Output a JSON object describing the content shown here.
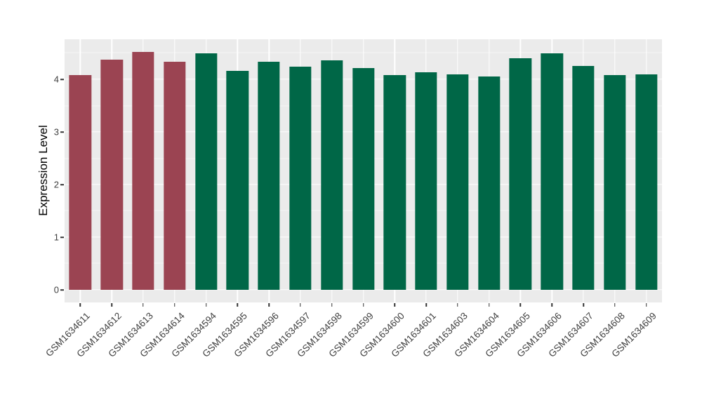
{
  "figure": {
    "background": "#ffffff"
  },
  "colors": {
    "panel_background": "#EBEBEB",
    "grid_major": "#FFFFFF",
    "grid_minor": "#F5F5F5",
    "bar_group_red": "#9B4452",
    "bar_group_green": "#006747",
    "axis_text": "#3F3F3F",
    "tick_mark": "#333333"
  },
  "chart_data": {
    "type": "bar",
    "title": "",
    "xlabel": "",
    "ylabel": "Expression Level",
    "ylim": [
      -0.24,
      4.76
    ],
    "yticks": [
      0,
      1,
      2,
      3,
      4
    ],
    "yticks_minor": [
      0.5,
      1.5,
      2.5,
      3.5,
      4.5
    ],
    "grid": true,
    "legend": false,
    "x_label_rotation_deg": 45,
    "categories": [
      "GSM1634611",
      "GSM1634612",
      "GSM1634613",
      "GSM1634614",
      "GSM1634594",
      "GSM1634595",
      "GSM1634596",
      "GSM1634597",
      "GSM1634598",
      "GSM1634599",
      "GSM1634600",
      "GSM1634601",
      "GSM1634603",
      "GSM1634604",
      "GSM1634605",
      "GSM1634606",
      "GSM1634607",
      "GSM1634608",
      "GSM1634609"
    ],
    "values": [
      4.08,
      4.37,
      4.52,
      4.34,
      4.49,
      4.16,
      4.34,
      4.24,
      4.36,
      4.22,
      4.08,
      4.14,
      4.09,
      4.05,
      4.4,
      4.5,
      4.25,
      4.08,
      4.1
    ],
    "bar_colors": [
      "#9B4452",
      "#9B4452",
      "#9B4452",
      "#9B4452",
      "#006747",
      "#006747",
      "#006747",
      "#006747",
      "#006747",
      "#006747",
      "#006747",
      "#006747",
      "#006747",
      "#006747",
      "#006747",
      "#006747",
      "#006747",
      "#006747",
      "#006747"
    ]
  }
}
